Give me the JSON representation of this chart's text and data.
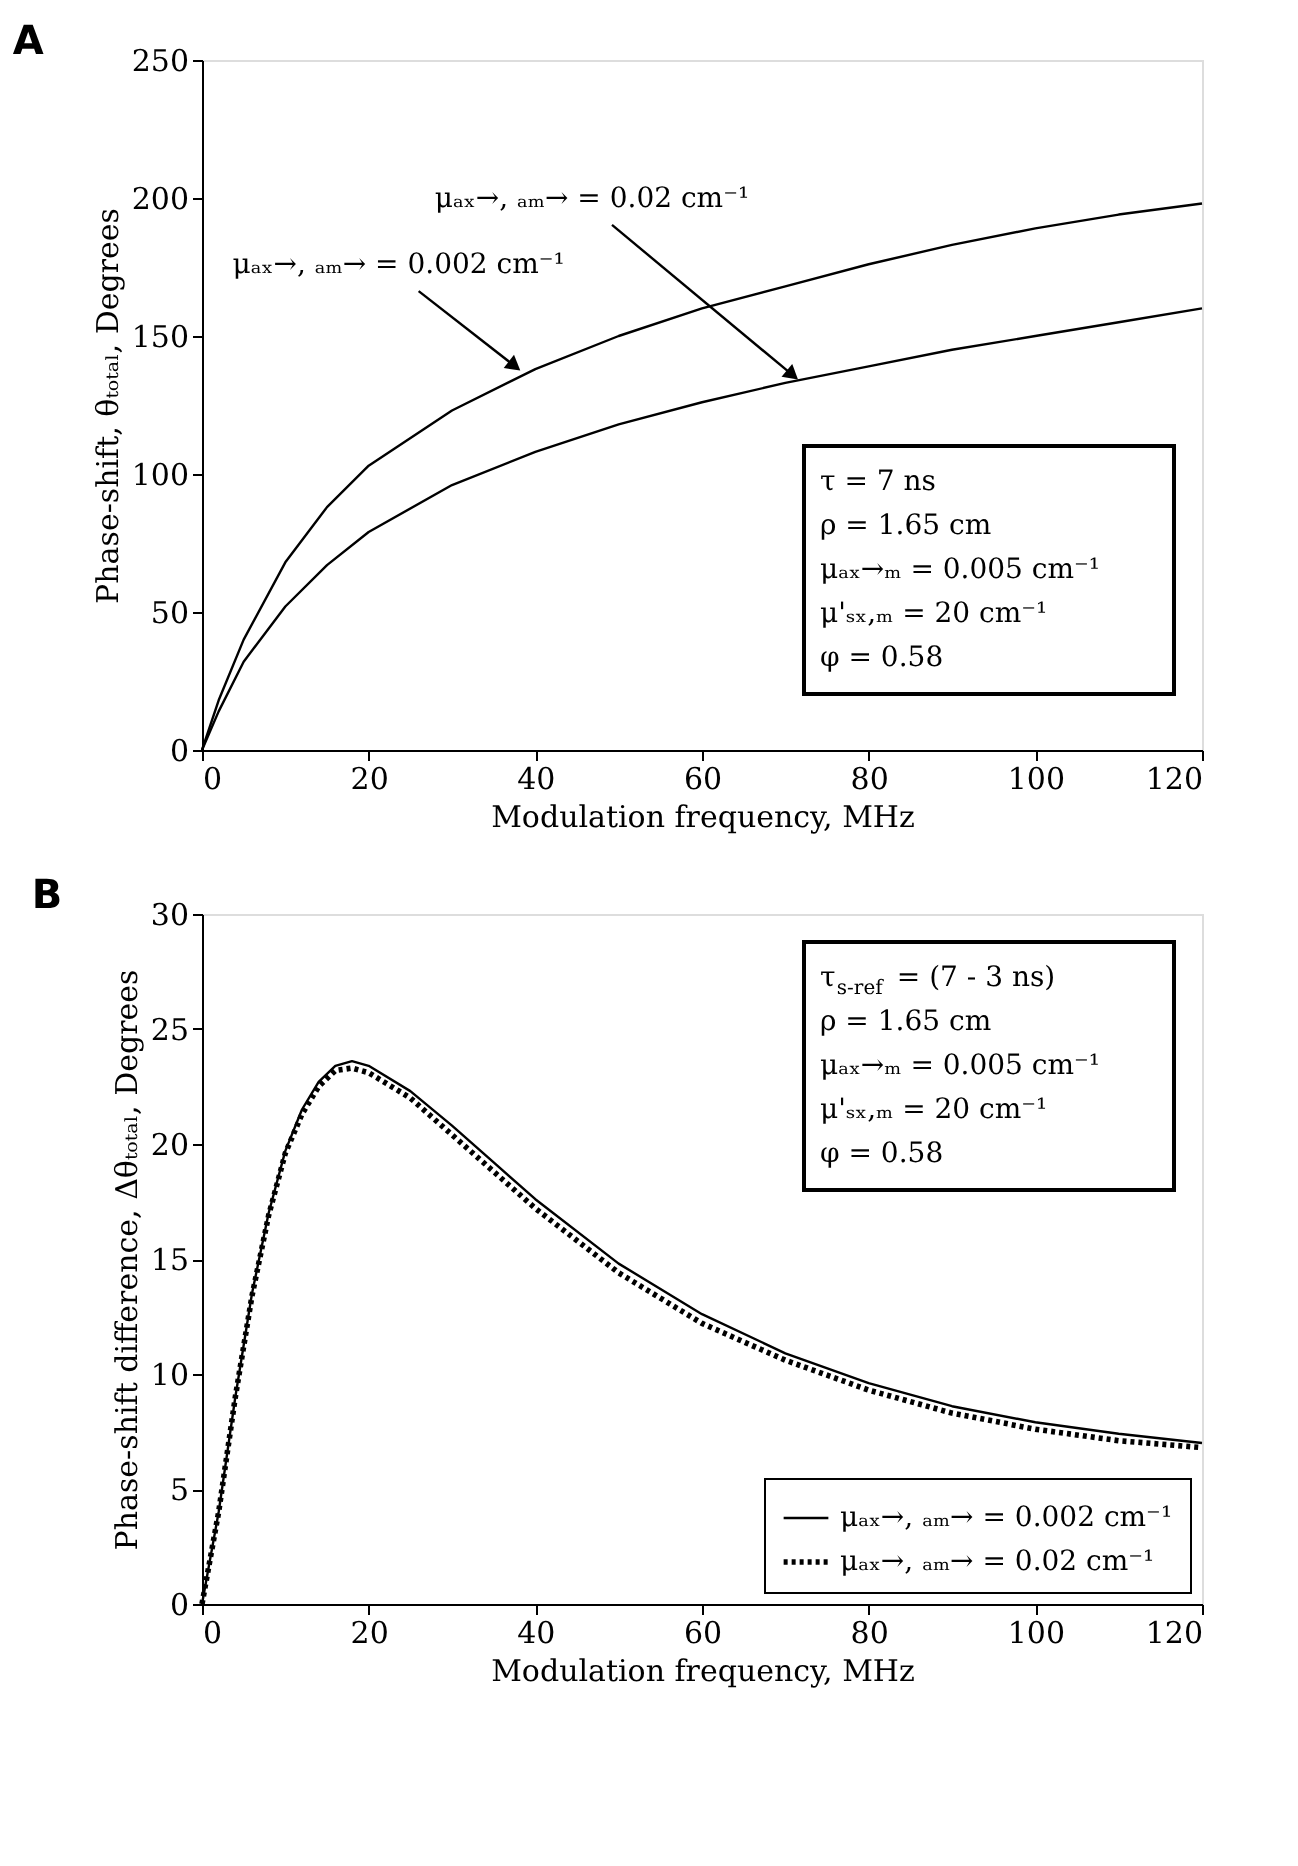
{
  "chart_data": [
    {
      "type": "line",
      "title": "A",
      "xlabel": "Modulation frequency, MHz",
      "ylabel": "Phase-shift, θₜₒₜₐₗ, Degrees",
      "x": [
        0,
        2,
        5,
        10,
        15,
        20,
        30,
        40,
        50,
        60,
        70,
        80,
        90,
        100,
        110,
        120
      ],
      "series": [
        {
          "color": "#000000",
          "values": [
            0,
            18,
            40,
            68,
            88,
            103,
            123,
            138,
            150,
            160,
            168,
            176,
            183,
            189,
            194,
            198
          ]
        },
        {
          "color": "#000000",
          "values": [
            0,
            14,
            32,
            52,
            67,
            79,
            96,
            108,
            118,
            126,
            133,
            139,
            145,
            150,
            155,
            160
          ]
        }
      ],
      "xlim": [
        0,
        120
      ],
      "xticks": [
        0,
        20,
        40,
        60,
        80,
        100,
        120
      ],
      "ylim": [
        0,
        250
      ],
      "yticks": [
        0,
        50,
        100,
        150,
        200,
        250
      ],
      "grid": false,
      "legend": false,
      "annotations": [
        {
          "text": "μₐₓ→, ₐₘ→ = 0.002 cm⁻¹",
          "x": 38,
          "y": 138
        },
        {
          "text": "μₐₓ→, ₐₘ→ = 0.02 cm⁻¹",
          "x": 72,
          "y": 133
        },
        "τ = 7 ns",
        "ρ = 1.65 cm",
        "μₐₓ→ₘ = 0.005 cm⁻¹",
        "μ'ₛₓ,ₘ = 20 cm⁻¹",
        "φ = 0.58"
      ]
    },
    {
      "type": "line",
      "title": "B",
      "xlabel": "Modulation frequency, MHz",
      "ylabel": "Phase-shift difference, Δθₜₒₜₐₗ, Degrees",
      "x": [
        0,
        2,
        4,
        6,
        8,
        10,
        12,
        14,
        16,
        18,
        20,
        25,
        30,
        35,
        40,
        50,
        60,
        70,
        80,
        90,
        100,
        110,
        120
      ],
      "series": [
        {
          "name": "μₐₓ→, ₐₘ→ = 0.002 cm⁻¹",
          "color": "#000000",
          "line_style": "solid",
          "values": [
            0,
            4,
            9,
            13.5,
            17,
            19.7,
            21.5,
            22.7,
            23.4,
            23.6,
            23.4,
            22.3,
            20.8,
            19.2,
            17.6,
            14.8,
            12.6,
            10.9,
            9.6,
            8.6,
            7.9,
            7.4,
            7.0
          ]
        },
        {
          "name": "μₐₓ→, ₐₘ→ = 0.02 cm⁻¹",
          "color": "#000000",
          "line_style": "dotted",
          "values": [
            0,
            4,
            9,
            13.4,
            16.9,
            19.6,
            21.3,
            22.5,
            23.2,
            23.3,
            23.1,
            22.0,
            20.4,
            18.8,
            17.2,
            14.4,
            12.2,
            10.6,
            9.3,
            8.3,
            7.6,
            7.1,
            6.8
          ]
        }
      ],
      "xlim": [
        0,
        120
      ],
      "xticks": [
        0,
        20,
        40,
        60,
        80,
        100,
        120
      ],
      "ylim": [
        0,
        30
      ],
      "yticks": [
        0,
        5,
        10,
        15,
        20,
        25,
        30
      ],
      "grid": false,
      "legend": "bottom right",
      "annotations": [
        "τ$_{s-ref}$ = (7 - 3 ns)",
        "ρ = 1.65 cm",
        "μₐₓ→ₘ = 0.005 cm⁻¹",
        "μ'ₛₓ,ₘ = 20 cm⁻¹",
        "φ = 0.58"
      ]
    }
  ]
}
